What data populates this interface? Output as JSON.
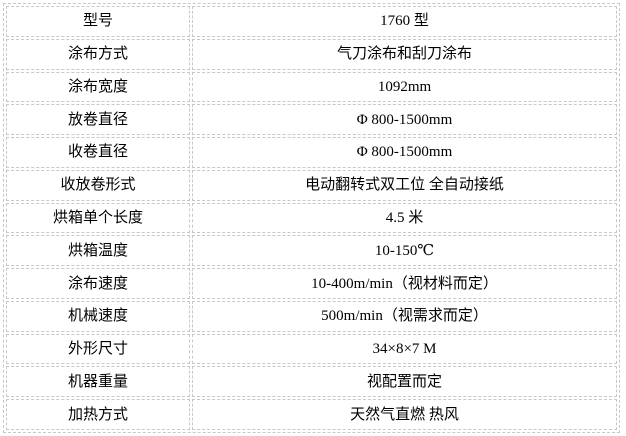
{
  "page": {
    "background_color": "#ffffff",
    "border_color": "#c8c8c8",
    "text_color": "#000000"
  },
  "spec_table": {
    "rows": [
      {
        "label": "型号",
        "value": "1760 型"
      },
      {
        "label": "涂布方式",
        "value": "气刀涂布和刮刀涂布"
      },
      {
        "label": "涂布宽度",
        "value": "1092mm"
      },
      {
        "label": "放卷直径",
        "value": "Φ 800-1500mm"
      },
      {
        "label": "收卷直径",
        "value": "Φ 800-1500mm"
      },
      {
        "label": "收放卷形式",
        "value": "电动翻转式双工位 全自动接纸"
      },
      {
        "label": "烘箱单个长度",
        "value": "4.5 米"
      },
      {
        "label": "烘箱温度",
        "value": "10-150℃"
      },
      {
        "label": "涂布速度",
        "value": "10-400m/min（视材料而定）"
      },
      {
        "label": "机械速度",
        "value": "500m/min（视需求而定）"
      },
      {
        "label": "外形尺寸",
        "value": "34×8×7 M"
      },
      {
        "label": "机器重量",
        "value": "视配置而定"
      },
      {
        "label": "加热方式",
        "value": "天然气直燃 热风"
      }
    ]
  }
}
